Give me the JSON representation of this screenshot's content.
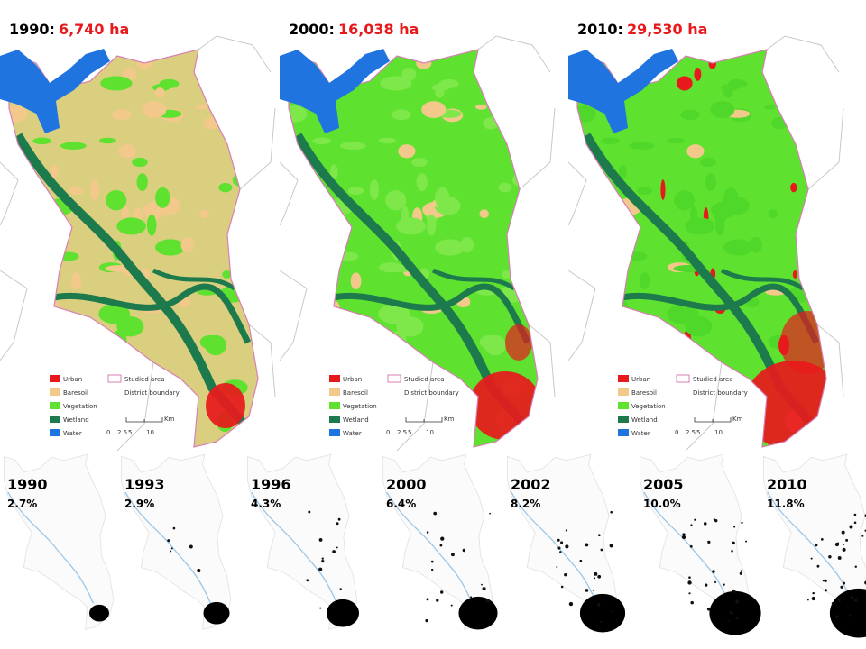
{
  "maps": [
    {
      "year": "1990:",
      "area": "6,740 ha",
      "legend": [
        "Urban",
        "Baresoil",
        "Vegetation",
        "Wetland",
        "Water"
      ],
      "boundary_legend": [
        "Studied area",
        "District boundary"
      ],
      "scale_unit": "Km",
      "scale_labels": [
        "0",
        "2.5",
        "5",
        "10"
      ]
    },
    {
      "year": "2000:",
      "area": "16,038 ha",
      "legend": [
        "Urban",
        "Baresoil",
        "Vegetation",
        "Wetland",
        "Water"
      ],
      "boundary_legend": [
        "Studied area",
        "District boundary"
      ],
      "scale_unit": "Km",
      "scale_labels": [
        "0",
        "2.5",
        "5",
        "10"
      ]
    },
    {
      "year": "2010:",
      "area": "29,530 ha",
      "legend": [
        "Urban",
        "Baresoil",
        "Vegetation",
        "Wetland",
        "Water"
      ],
      "boundary_legend": [
        "Studied area",
        "District boundary"
      ],
      "scale_unit": "Km",
      "scale_labels": [
        "0",
        "2.5",
        "5",
        "10"
      ]
    }
  ],
  "small_maps": [
    {
      "year": "1990",
      "share": "2.7%"
    },
    {
      "year": "1993",
      "share": "2.9%"
    },
    {
      "year": "1996",
      "share": "4.3%"
    },
    {
      "year": "2000",
      "share": "6.4%"
    },
    {
      "year": "2002",
      "share": "8.2%"
    },
    {
      "year": "2005",
      "share": "10.0%"
    },
    {
      "year": "2010",
      "share": "11.8%"
    }
  ]
}
